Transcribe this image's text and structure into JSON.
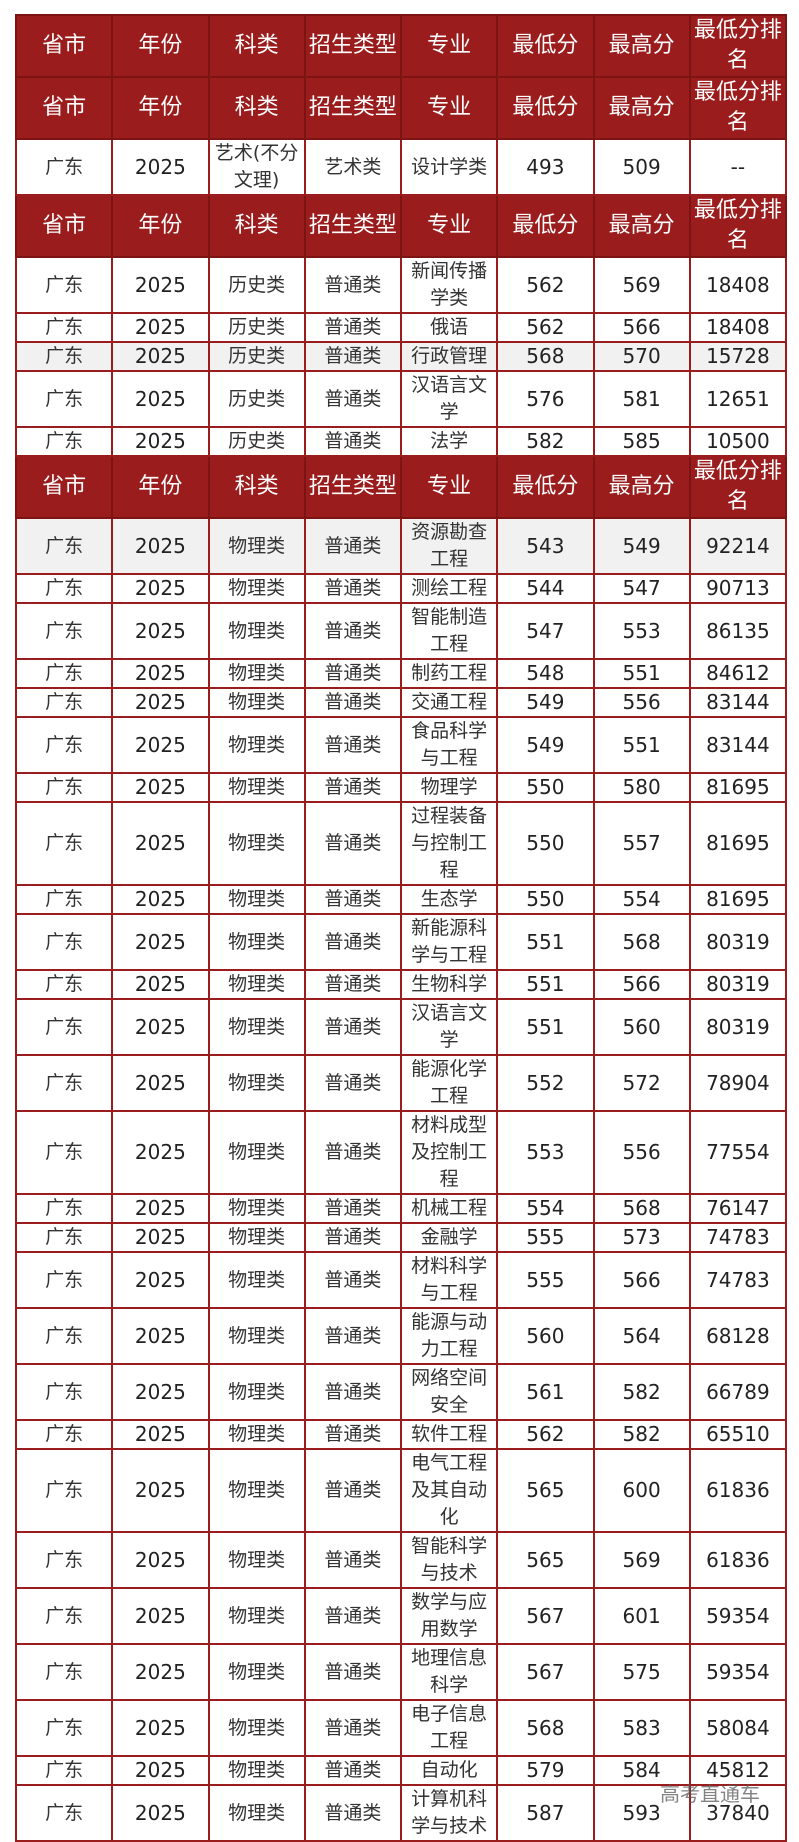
{
  "header": [
    "省市",
    "年份",
    "科类",
    "招生类型",
    "专业",
    "最低分",
    "最高分",
    "最低分排名"
  ],
  "groups": [
    {
      "header_rows": 2,
      "rows": [
        {
          "cells": [
            "广东",
            "2025",
            "艺术(不分文理)",
            "艺术类",
            "设计学类",
            "493",
            "509",
            "--"
          ]
        }
      ]
    },
    {
      "header_rows": 1,
      "rows": [
        {
          "cells": [
            "广东",
            "2025",
            "历史类",
            "普通类",
            "新闻传播学类",
            "562",
            "569",
            "18408"
          ]
        },
        {
          "cells": [
            "广东",
            "2025",
            "历史类",
            "普通类",
            "俄语",
            "562",
            "566",
            "18408"
          ]
        },
        {
          "cells": [
            "广东",
            "2025",
            "历史类",
            "普通类",
            "行政管理",
            "568",
            "570",
            "15728"
          ],
          "highlight": true
        },
        {
          "cells": [
            "广东",
            "2025",
            "历史类",
            "普通类",
            "汉语言文学",
            "576",
            "581",
            "12651"
          ]
        },
        {
          "cells": [
            "广东",
            "2025",
            "历史类",
            "普通类",
            "法学",
            "582",
            "585",
            "10500"
          ]
        }
      ]
    },
    {
      "header_rows": 1,
      "rows": [
        {
          "cells": [
            "广东",
            "2025",
            "物理类",
            "普通类",
            "资源勘查工程",
            "543",
            "549",
            "92214"
          ],
          "highlight": true
        },
        {
          "cells": [
            "广东",
            "2025",
            "物理类",
            "普通类",
            "测绘工程",
            "544",
            "547",
            "90713"
          ]
        },
        {
          "cells": [
            "广东",
            "2025",
            "物理类",
            "普通类",
            "智能制造工程",
            "547",
            "553",
            "86135"
          ]
        },
        {
          "cells": [
            "广东",
            "2025",
            "物理类",
            "普通类",
            "制药工程",
            "548",
            "551",
            "84612"
          ]
        },
        {
          "cells": [
            "广东",
            "2025",
            "物理类",
            "普通类",
            "交通工程",
            "549",
            "556",
            "83144"
          ]
        },
        {
          "cells": [
            "广东",
            "2025",
            "物理类",
            "普通类",
            "食品科学与工程",
            "549",
            "551",
            "83144"
          ]
        },
        {
          "cells": [
            "广东",
            "2025",
            "物理类",
            "普通类",
            "物理学",
            "550",
            "580",
            "81695"
          ]
        },
        {
          "cells": [
            "广东",
            "2025",
            "物理类",
            "普通类",
            "过程装备与控制工程",
            "550",
            "557",
            "81695"
          ]
        },
        {
          "cells": [
            "广东",
            "2025",
            "物理类",
            "普通类",
            "生态学",
            "550",
            "554",
            "81695"
          ]
        },
        {
          "cells": [
            "广东",
            "2025",
            "物理类",
            "普通类",
            "新能源科学与工程",
            "551",
            "568",
            "80319"
          ]
        },
        {
          "cells": [
            "广东",
            "2025",
            "物理类",
            "普通类",
            "生物科学",
            "551",
            "566",
            "80319"
          ]
        },
        {
          "cells": [
            "广东",
            "2025",
            "物理类",
            "普通类",
            "汉语言文学",
            "551",
            "560",
            "80319"
          ]
        },
        {
          "cells": [
            "广东",
            "2025",
            "物理类",
            "普通类",
            "能源化学工程",
            "552",
            "572",
            "78904"
          ]
        },
        {
          "cells": [
            "广东",
            "2025",
            "物理类",
            "普通类",
            "材料成型及控制工程",
            "553",
            "556",
            "77554"
          ]
        },
        {
          "cells": [
            "广东",
            "2025",
            "物理类",
            "普通类",
            "机械工程",
            "554",
            "568",
            "76147"
          ]
        },
        {
          "cells": [
            "广东",
            "2025",
            "物理类",
            "普通类",
            "金融学",
            "555",
            "573",
            "74783"
          ]
        },
        {
          "cells": [
            "广东",
            "2025",
            "物理类",
            "普通类",
            "材料科学与工程",
            "555",
            "566",
            "74783"
          ]
        },
        {
          "cells": [
            "广东",
            "2025",
            "物理类",
            "普通类",
            "能源与动力工程",
            "560",
            "564",
            "68128"
          ]
        },
        {
          "cells": [
            "广东",
            "2025",
            "物理类",
            "普通类",
            "网络空间安全",
            "561",
            "582",
            "66789"
          ]
        },
        {
          "cells": [
            "广东",
            "2025",
            "物理类",
            "普通类",
            "软件工程",
            "562",
            "582",
            "65510"
          ]
        },
        {
          "cells": [
            "广东",
            "2025",
            "物理类",
            "普通类",
            "电气工程及其自动化",
            "565",
            "600",
            "61836"
          ]
        },
        {
          "cells": [
            "广东",
            "2025",
            "物理类",
            "普通类",
            "智能科学与技术",
            "565",
            "569",
            "61836"
          ]
        },
        {
          "cells": [
            "广东",
            "2025",
            "物理类",
            "普通类",
            "数学与应用数学",
            "567",
            "601",
            "59354"
          ]
        },
        {
          "cells": [
            "广东",
            "2025",
            "物理类",
            "普通类",
            "地理信息科学",
            "567",
            "575",
            "59354"
          ]
        },
        {
          "cells": [
            "广东",
            "2025",
            "物理类",
            "普通类",
            "电子信息工程",
            "568",
            "583",
            "58084"
          ]
        },
        {
          "cells": [
            "广东",
            "2025",
            "物理类",
            "普通类",
            "自动化",
            "579",
            "584",
            "45812"
          ]
        },
        {
          "cells": [
            "广东",
            "2025",
            "物理类",
            "普通类",
            "计算机科学与技术",
            "587",
            "593",
            "37840"
          ]
        }
      ]
    }
  ],
  "watermark": "高考直通车",
  "colors": {
    "header_bg": "#9b1c1c",
    "border": "#9b1c1c",
    "highlight_row": "#f1f1f1"
  }
}
